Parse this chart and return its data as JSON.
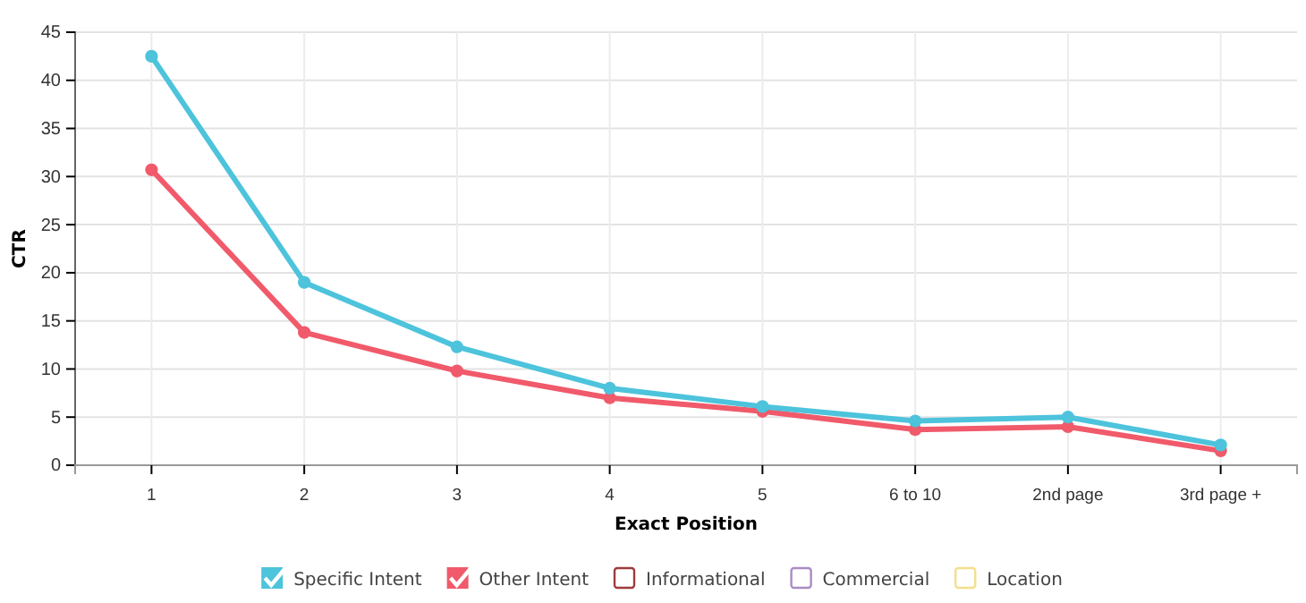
{
  "chart_data": {
    "type": "line",
    "xlabel": "Exact Position",
    "ylabel": "CTR",
    "categories": [
      "1",
      "2",
      "3",
      "4",
      "5",
      "6 to 10",
      "2nd page",
      "3rd page +"
    ],
    "series": [
      {
        "name": "Specific Intent",
        "color": "#4dc3dc",
        "values": [
          42.5,
          19.0,
          12.3,
          8.0,
          6.1,
          4.6,
          5.0,
          2.1
        ]
      },
      {
        "name": "Other Intent",
        "color": "#f05a6a",
        "values": [
          30.7,
          13.8,
          9.8,
          7.0,
          5.6,
          3.7,
          4.0,
          1.5
        ]
      },
      {
        "name": "Informational",
        "color": "#9e3b3b",
        "values": [
          null,
          null,
          null,
          null,
          null,
          null,
          null,
          null
        ]
      },
      {
        "name": "Commercial",
        "color": "#a98cc4",
        "values": [
          null,
          null,
          null,
          null,
          null,
          null,
          null,
          null
        ]
      },
      {
        "name": "Location",
        "color": "#f2df8c",
        "values": [
          null,
          null,
          null,
          null,
          null,
          null,
          null,
          null
        ]
      }
    ],
    "ylim": [
      0,
      45
    ],
    "yticks": [
      0,
      5,
      10,
      15,
      20,
      25,
      30,
      35,
      40,
      45
    ],
    "grid": true,
    "legend": "bottom",
    "marker": "circle",
    "line_style": "solid"
  }
}
